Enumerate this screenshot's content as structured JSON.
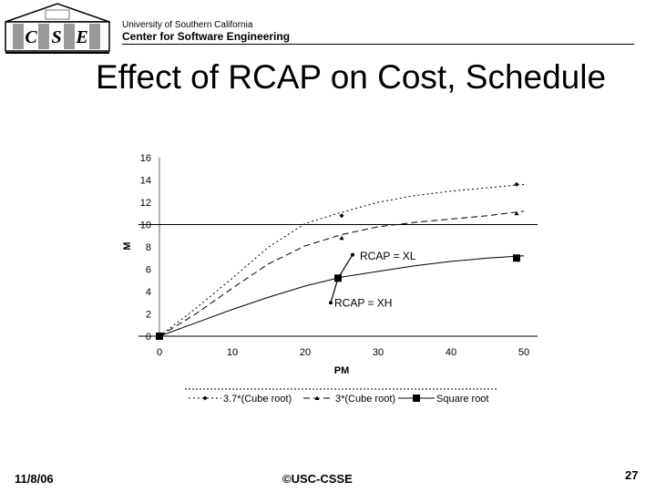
{
  "header": {
    "logo_letters": [
      "C",
      "S",
      "E"
    ],
    "university": "University of Southern California",
    "center": "Center for Software  Engineering"
  },
  "slide": {
    "title": "Effect of RCAP on Cost, Schedule"
  },
  "footer": {
    "date": "11/8/06",
    "copyright": "©USC-CSSE",
    "page": "27"
  },
  "colors": {
    "ink": "#000000",
    "background": "#ffffff"
  },
  "chart_data": {
    "type": "line",
    "xlabel": "PM",
    "ylabel": "M",
    "xlim": [
      0,
      50
    ],
    "ylim": [
      0,
      16
    ],
    "xticks": [
      0,
      10,
      20,
      30,
      40,
      50
    ],
    "yticks": [
      0,
      2,
      4,
      6,
      8,
      10,
      12,
      14,
      16
    ],
    "reference_line_y": 10,
    "series": [
      {
        "name": "3.7*(Cube root)",
        "marker": "diamond",
        "dash": "dotted",
        "x": [
          0,
          5,
          10,
          15,
          20,
          25,
          30,
          35,
          40,
          45,
          50
        ],
        "y": [
          0,
          2.5,
          5.2,
          8.0,
          10.1,
          11.1,
          12.0,
          12.6,
          13.0,
          13.3,
          13.6
        ],
        "markers_x": [
          0,
          25,
          49
        ],
        "markers_y": [
          0,
          10.8,
          13.6
        ]
      },
      {
        "name": "3*(Cube root)",
        "marker": "triangle",
        "dash": "dashed",
        "x": [
          0,
          5,
          10,
          15,
          20,
          25,
          30,
          35,
          40,
          45,
          50
        ],
        "y": [
          0,
          2.0,
          4.3,
          6.5,
          8.1,
          9.1,
          9.8,
          10.2,
          10.5,
          10.8,
          11.2
        ],
        "markers_x": [
          0,
          25,
          49
        ],
        "markers_y": [
          0,
          8.8,
          11.0
        ]
      },
      {
        "name": "Square root",
        "marker": "square",
        "dash": "solid",
        "x": [
          0,
          5,
          10,
          15,
          20,
          25,
          30,
          35,
          40,
          45,
          50
        ],
        "y": [
          0,
          1.2,
          2.4,
          3.5,
          4.5,
          5.3,
          5.8,
          6.3,
          6.7,
          7.0,
          7.2
        ],
        "markers_x": [
          0,
          24.5,
          49
        ],
        "markers_y": [
          0,
          5.2,
          7.0
        ]
      }
    ],
    "annotations": [
      {
        "text": "RCAP = XL",
        "x": 27.5,
        "y": 7.2
      },
      {
        "text": "RCAP = XH",
        "x": 24,
        "y": 3.0
      }
    ],
    "rcap_segment": {
      "x": [
        23.5,
        24.5,
        26.5
      ],
      "y": [
        3.0,
        5.2,
        7.3
      ]
    }
  }
}
